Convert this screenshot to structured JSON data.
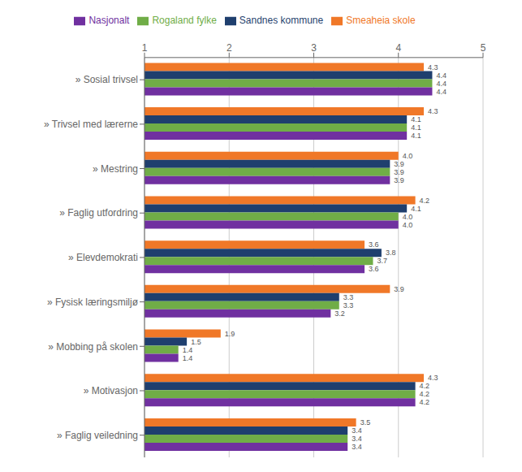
{
  "chart_data": {
    "type": "bar",
    "orientation": "horizontal",
    "categories": [
      "» Sosial trivsel",
      "» Trivsel med lærerne",
      "» Mestring",
      "» Faglig utfordring",
      "» Elevdemokrati",
      "» Fysisk læringsmiljø",
      "» Mobbing på skolen",
      "» Motivasjon",
      "» Faglig veiledning"
    ],
    "series": [
      {
        "name": "Smeaheia skole",
        "color": "#F07828",
        "values": [
          4.3,
          4.3,
          4.0,
          4.2,
          3.6,
          3.9,
          1.9,
          4.3,
          3.5
        ],
        "value_labels": [
          "4.3",
          "4.3",
          "4.0",
          "4.2",
          "3.6",
          "3.9",
          "1.9",
          "4.3",
          "3.5"
        ]
      },
      {
        "name": "Sandnes kommune",
        "color": "#1F3F6E",
        "values": [
          4.4,
          4.1,
          3.9,
          4.1,
          3.8,
          3.3,
          1.5,
          4.2,
          3.4
        ],
        "value_labels": [
          "4.4",
          "4.1",
          "3.9",
          "4.1",
          "3.8",
          "3.3",
          "1.5",
          "4.2",
          "3.4"
        ]
      },
      {
        "name": "Rogaland fylke",
        "color": "#70AD47",
        "values": [
          4.4,
          4.1,
          3.9,
          4.0,
          3.7,
          3.3,
          1.4,
          4.2,
          3.4
        ],
        "value_labels": [
          "4.4",
          "4.1",
          "3.9",
          "4.0",
          "3.7",
          "3.3",
          "1.4",
          "4.2",
          "3.4"
        ]
      },
      {
        "name": "Nasjonalt",
        "color": "#7030A0",
        "values": [
          4.4,
          4.1,
          3.9,
          4.0,
          3.6,
          3.2,
          1.4,
          4.2,
          3.4
        ],
        "value_labels": [
          "4.4",
          "4.1",
          "3.9",
          "4.0",
          "3.6",
          "3.2",
          "1.4",
          "4.2",
          "3.4"
        ]
      }
    ],
    "xlim": [
      1,
      5
    ],
    "xticks": [
      1,
      2,
      3,
      4,
      5
    ],
    "grid": true,
    "legend": "top",
    "data_labels": true
  }
}
